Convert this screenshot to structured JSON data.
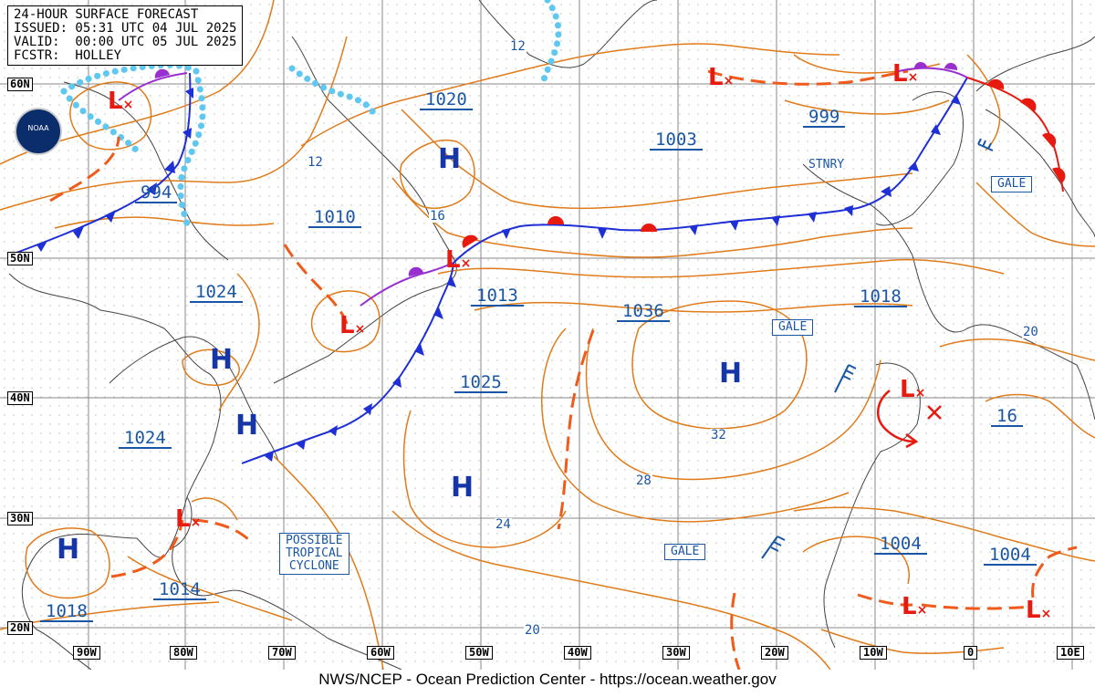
{
  "header": {
    "line1": "24-HOUR SURFACE FORECAST",
    "line2": "ISSUED: 05:31 UTC 04 JUL 2025",
    "line3": "VALID:  00:00 UTC 05 JUL 2025",
    "line4": "FCSTR:  HOLLEY"
  },
  "footer": "NWS/NCEP - Ocean Prediction Center - https://ocean.weather.gov",
  "logo": "NOAA",
  "lat_labels": [
    "60N",
    "50N",
    "40N",
    "30N",
    "20N"
  ],
  "lon_labels": [
    "90W",
    "80W",
    "70W",
    "60W",
    "50W",
    "40W",
    "30W",
    "20W",
    "10W",
    "0",
    "10E"
  ],
  "pressures": [
    "1020",
    "1003",
    "999",
    "994",
    "1010",
    "1013",
    "1024",
    "1036",
    "1018",
    "1025",
    "1024",
    "16",
    "1004",
    "1004",
    "1014",
    "1018"
  ],
  "isotherms": [
    "12",
    "12",
    "16",
    "20",
    "32",
    "28",
    "24",
    "20"
  ],
  "highs": [
    "H",
    "H",
    "H",
    "H",
    "H",
    "H"
  ],
  "lows": [
    "L",
    "L",
    "L",
    "L",
    "L",
    "L",
    "L",
    "L",
    "L"
  ],
  "labels": {
    "stnry": "STNRY",
    "gale": "GALE",
    "tropical": [
      "POSSIBLE",
      "TROPICAL",
      "CYCLONE"
    ]
  },
  "colors": {
    "isobar": "#e07b1a",
    "cold_front": "#1f2fd6",
    "warm_front": "#e8190f",
    "occluded_front": "#9a2fd0",
    "trough": "#f05a1a",
    "ice_dots": "#5ec8f0",
    "label_blue": "#1a56a6",
    "low": "#e8190f",
    "grid": "#7a7a7a"
  }
}
